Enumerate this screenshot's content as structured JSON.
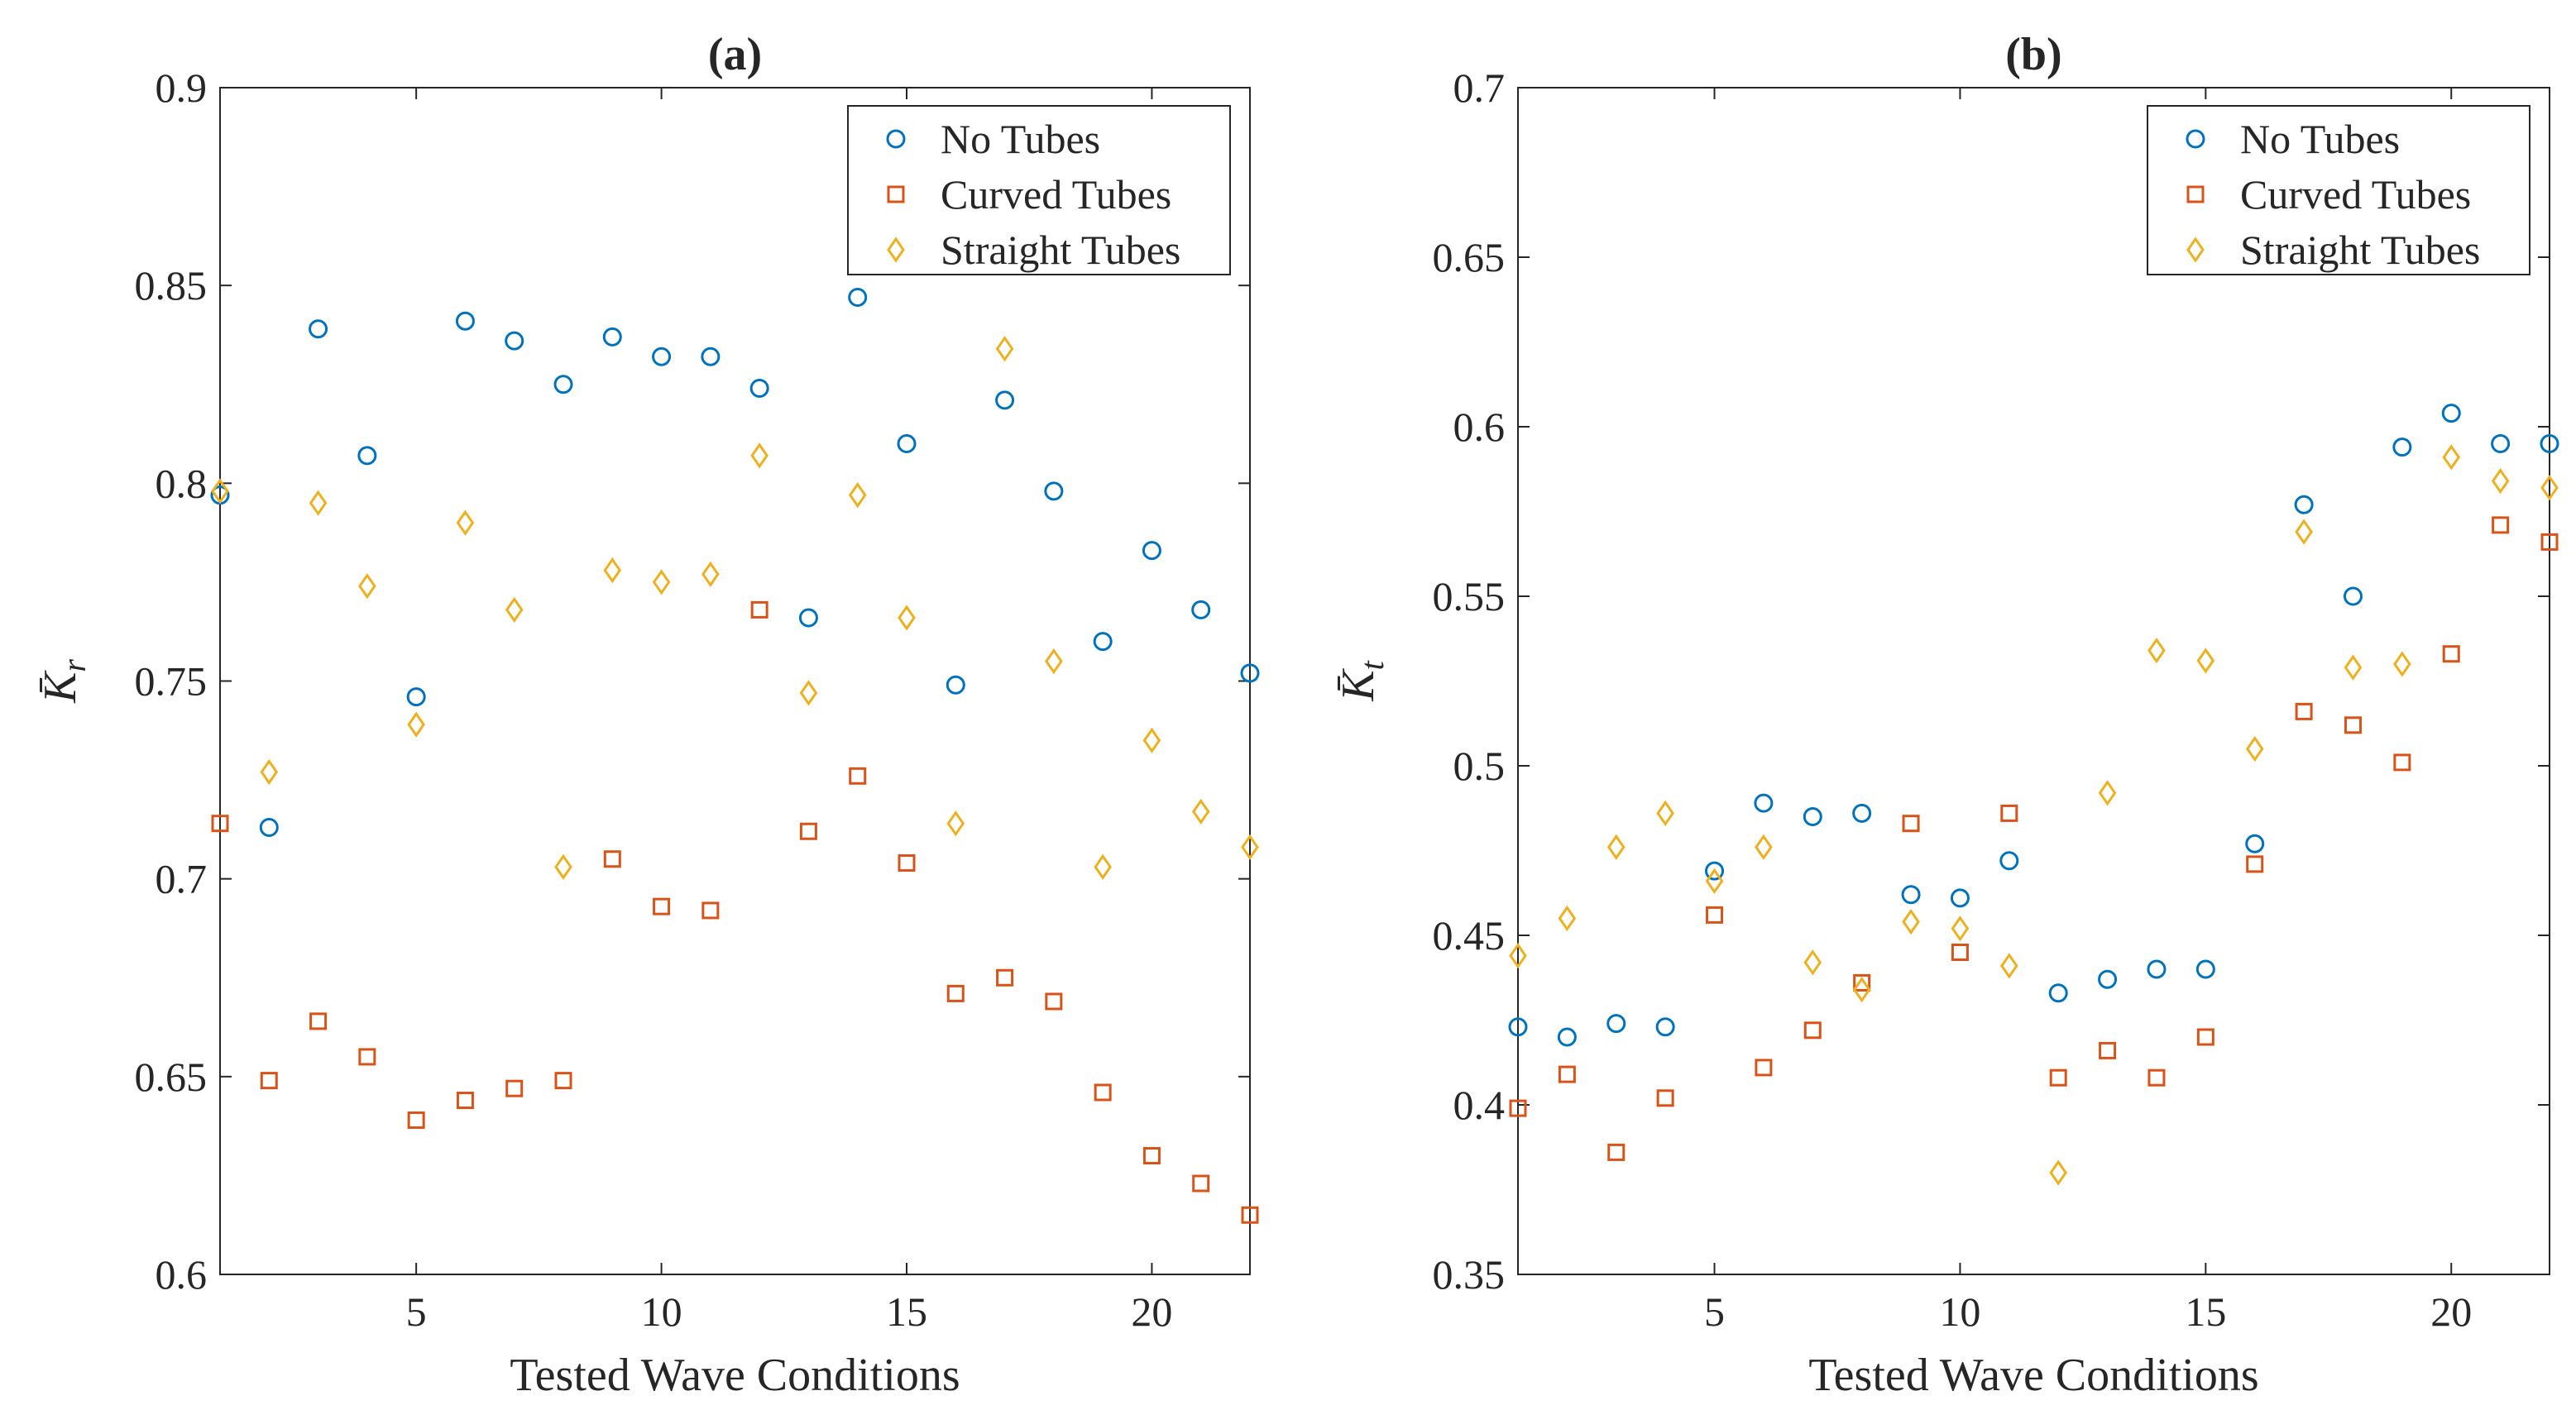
{
  "chart_data": [
    {
      "panel": "a",
      "type": "scatter",
      "title": "(a)",
      "xlabel": "Tested Wave Conditions",
      "ylabel": "K̄r",
      "ylabel_base": "K̄",
      "ylabel_sub": "r",
      "xlim": [
        1,
        22
      ],
      "ylim": [
        0.6,
        0.9
      ],
      "xticks": [
        5,
        10,
        15,
        20
      ],
      "yticks": [
        0.6,
        0.65,
        0.7,
        0.75,
        0.8,
        0.85,
        0.9
      ],
      "ytick_labels": [
        "0.6",
        "0.65",
        "0.7",
        "0.75",
        "0.8",
        "0.85",
        "0.9"
      ],
      "grid": false,
      "legend_position": "top-right",
      "x": [
        1,
        2,
        3,
        4,
        5,
        6,
        7,
        8,
        9,
        10,
        11,
        12,
        13,
        14,
        15,
        16,
        17,
        18,
        19,
        20,
        21,
        22
      ],
      "series": [
        {
          "name": "No Tubes",
          "marker": "circle",
          "color": "#0072BD",
          "values": [
            0.797,
            0.713,
            0.839,
            0.807,
            0.746,
            0.841,
            0.836,
            0.825,
            0.837,
            0.832,
            0.832,
            0.824,
            0.766,
            0.847,
            0.81,
            0.749,
            0.821,
            0.798,
            0.76,
            0.783,
            0.768,
            0.752
          ]
        },
        {
          "name": "Curved Tubes",
          "marker": "square",
          "color": "#D95319",
          "values": [
            0.714,
            0.649,
            0.664,
            0.655,
            0.639,
            0.644,
            0.647,
            0.649,
            0.705,
            0.693,
            0.692,
            0.768,
            0.712,
            0.726,
            0.704,
            0.671,
            0.675,
            0.669,
            0.646,
            0.63,
            0.623,
            0.615
          ]
        },
        {
          "name": "Straight Tubes",
          "marker": "diamond",
          "color": "#EDB120",
          "values": [
            0.798,
            0.727,
            0.795,
            0.774,
            0.739,
            0.79,
            0.768,
            0.703,
            0.778,
            0.775,
            0.777,
            0.807,
            0.747,
            0.797,
            0.766,
            0.714,
            0.834,
            0.755,
            0.703,
            0.735,
            0.717,
            0.708
          ]
        }
      ]
    },
    {
      "panel": "b",
      "type": "scatter",
      "title": "(b)",
      "xlabel": "Tested Wave Conditions",
      "ylabel": "K̄t",
      "ylabel_base": "K̄",
      "ylabel_sub": "t",
      "xlim": [
        1,
        22
      ],
      "ylim": [
        0.35,
        0.7
      ],
      "xticks": [
        5,
        10,
        15,
        20
      ],
      "yticks": [
        0.35,
        0.4,
        0.45,
        0.5,
        0.55,
        0.6,
        0.65,
        0.7
      ],
      "ytick_labels": [
        "0.35",
        "0.4",
        "0.45",
        "0.5",
        "0.55",
        "0.6",
        "0.65",
        "0.7"
      ],
      "grid": false,
      "legend_position": "top-right",
      "x": [
        1,
        2,
        3,
        4,
        5,
        6,
        7,
        8,
        9,
        10,
        11,
        12,
        13,
        14,
        15,
        16,
        17,
        18,
        19,
        20,
        21,
        22
      ],
      "series": [
        {
          "name": "No Tubes",
          "marker": "circle",
          "color": "#0072BD",
          "values": [
            0.423,
            0.42,
            0.424,
            0.423,
            0.469,
            0.489,
            0.485,
            0.486,
            0.462,
            0.461,
            0.472,
            0.433,
            0.437,
            0.44,
            0.44,
            0.477,
            0.577,
            0.55,
            0.594,
            0.604,
            0.595,
            0.595
          ]
        },
        {
          "name": "Curved Tubes",
          "marker": "square",
          "color": "#D95319",
          "values": [
            0.399,
            0.409,
            0.386,
            0.402,
            0.456,
            0.411,
            0.422,
            0.436,
            0.483,
            0.445,
            0.486,
            0.408,
            0.416,
            0.408,
            0.42,
            0.471,
            0.516,
            0.512,
            0.501,
            0.533,
            0.571,
            0.566
          ]
        },
        {
          "name": "Straight Tubes",
          "marker": "diamond",
          "color": "#EDB120",
          "values": [
            0.444,
            0.455,
            0.476,
            0.486,
            0.466,
            0.476,
            0.442,
            0.434,
            0.454,
            0.452,
            0.441,
            0.38,
            0.492,
            0.534,
            0.531,
            0.505,
            0.569,
            0.529,
            0.53,
            0.591,
            0.584,
            0.582
          ]
        }
      ]
    }
  ]
}
